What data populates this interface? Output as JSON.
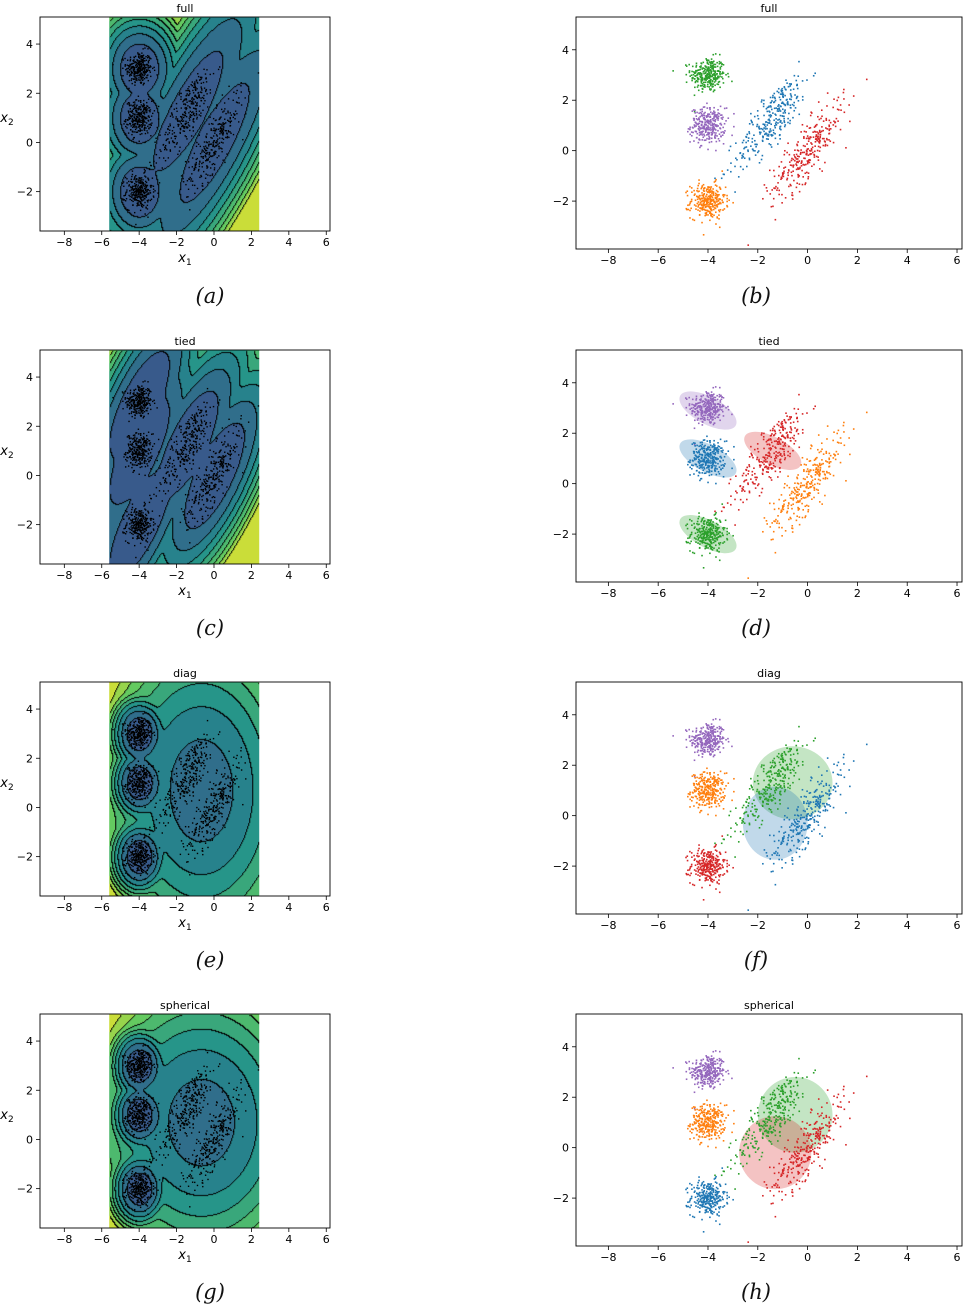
{
  "colors": {
    "tab_blue": "#1f77b4",
    "tab_orange": "#ff7f0e",
    "tab_green": "#2ca02c",
    "tab_red": "#d62728",
    "tab_purple": "#9467bd",
    "viridis_low": "#3b528b",
    "viridis_mid": "#21918c",
    "viridis_high": "#fde725",
    "contour_line": "#000000",
    "data_point": "#000000"
  },
  "clusters": [
    {
      "id": "c1",
      "mean": [
        -4.0,
        3.0
      ],
      "cov": [
        [
          0.12,
          0
        ],
        [
          0,
          0.12
        ]
      ]
    },
    {
      "id": "c2",
      "mean": [
        -4.0,
        1.0
      ],
      "cov": [
        [
          0.12,
          0
        ],
        [
          0,
          0.12
        ]
      ]
    },
    {
      "id": "c3",
      "mean": [
        -4.0,
        -2.0
      ],
      "cov": [
        [
          0.12,
          0
        ],
        [
          0,
          0.12
        ]
      ]
    },
    {
      "id": "c4",
      "mean": [
        -1.4,
        1.3
      ],
      "cov": [
        [
          0.55,
          0.6
        ],
        [
          0.6,
          0.95
        ]
      ]
    },
    {
      "id": "c5",
      "mean": [
        0.0,
        0.0
      ],
      "cov": [
        [
          0.55,
          0.6
        ],
        [
          0.6,
          0.95
        ]
      ]
    }
  ],
  "chart_data": [
    {
      "type": "heatmap",
      "title": "full",
      "xlabel": "x1",
      "ylabel": "x2",
      "xlim": [
        -9.3,
        6.2
      ],
      "ylim": [
        -3.6,
        5.1
      ],
      "xticks": [
        -8,
        -6,
        -4,
        -2,
        0,
        2,
        4,
        6
      ],
      "yticks": [
        -2,
        0,
        2,
        4
      ],
      "extent_x": [
        -5.6,
        2.4
      ],
      "extent_y": [
        -3.6,
        5.1
      ],
      "caption": "(a)",
      "components": [
        {
          "mean": [
            -4.0,
            3.0
          ],
          "cov": [
            [
              0.12,
              0
            ],
            [
              0,
              0.12
            ]
          ]
        },
        {
          "mean": [
            -4.0,
            1.0
          ],
          "cov": [
            [
              0.12,
              0
            ],
            [
              0,
              0.12
            ]
          ]
        },
        {
          "mean": [
            -4.0,
            -2.0
          ],
          "cov": [
            [
              0.12,
              0
            ],
            [
              0,
              0.12
            ]
          ]
        },
        {
          "mean": [
            -1.4,
            1.3
          ],
          "cov": [
            [
              0.55,
              0.6
            ],
            [
              0.6,
              0.95
            ]
          ]
        },
        {
          "mean": [
            0.0,
            0.0
          ],
          "cov": [
            [
              0.55,
              0.6
            ],
            [
              0.6,
              0.95
            ]
          ]
        }
      ]
    },
    {
      "type": "scatter",
      "title": "full",
      "xlim": [
        -9.3,
        6.2
      ],
      "ylim": [
        -3.9,
        5.3
      ],
      "xticks": [
        -8,
        -6,
        -4,
        -2,
        0,
        2,
        4,
        6
      ],
      "yticks": [
        -2,
        0,
        2,
        4
      ],
      "caption": "(b)",
      "assign": [
        "green",
        "purple",
        "orange",
        "blue",
        "red"
      ],
      "ellipses": []
    },
    {
      "type": "heatmap",
      "title": "tied",
      "xlabel": "x1",
      "ylabel": "x2",
      "xlim": [
        -9.3,
        6.2
      ],
      "ylim": [
        -3.6,
        5.1
      ],
      "xticks": [
        -8,
        -6,
        -4,
        -2,
        0,
        2,
        4,
        6
      ],
      "yticks": [
        -2,
        0,
        2,
        4
      ],
      "extent_x": [
        -5.6,
        2.4
      ],
      "extent_y": [
        -3.6,
        5.1
      ],
      "caption": "(c)",
      "components": [
        {
          "mean": [
            -4.0,
            2.9
          ],
          "cov": [
            [
              0.3,
              0.3
            ],
            [
              0.3,
              0.55
            ]
          ]
        },
        {
          "mean": [
            -4.0,
            1.0
          ],
          "cov": [
            [
              0.3,
              0.3
            ],
            [
              0.3,
              0.55
            ]
          ]
        },
        {
          "mean": [
            -4.0,
            -2.0
          ],
          "cov": [
            [
              0.3,
              0.3
            ],
            [
              0.3,
              0.55
            ]
          ]
        },
        {
          "mean": [
            -1.4,
            1.3
          ],
          "cov": [
            [
              0.3,
              0.3
            ],
            [
              0.3,
              0.55
            ]
          ]
        },
        {
          "mean": [
            0.0,
            0.0
          ],
          "cov": [
            [
              0.3,
              0.3
            ],
            [
              0.3,
              0.55
            ]
          ]
        }
      ]
    },
    {
      "type": "scatter",
      "title": "tied",
      "xlim": [
        -9.3,
        6.2
      ],
      "ylim": [
        -3.9,
        5.3
      ],
      "xticks": [
        -8,
        -6,
        -4,
        -2,
        0,
        2,
        4,
        6
      ],
      "yticks": [
        -2,
        0,
        2,
        4
      ],
      "caption": "(d)",
      "assign": [
        "purple",
        "blue",
        "green",
        "red",
        "orange"
      ],
      "ellipses": [
        {
          "color": "purple",
          "cx": -4.0,
          "cy": 2.9,
          "rx": 0.55,
          "ry": 1.25,
          "angle": 62
        },
        {
          "color": "blue",
          "cx": -4.0,
          "cy": 1.0,
          "rx": 0.55,
          "ry": 1.25,
          "angle": 62
        },
        {
          "color": "green",
          "cx": -4.0,
          "cy": -2.0,
          "rx": 0.55,
          "ry": 1.25,
          "angle": 62
        },
        {
          "color": "red",
          "cx": -1.4,
          "cy": 1.3,
          "rx": 0.55,
          "ry": 1.25,
          "angle": 62
        }
      ]
    },
    {
      "type": "heatmap",
      "title": "diag",
      "xlabel": "x1",
      "ylabel": "x2",
      "xlim": [
        -9.3,
        6.2
      ],
      "ylim": [
        -3.6,
        5.1
      ],
      "xticks": [
        -8,
        -6,
        -4,
        -2,
        0,
        2,
        4,
        6
      ],
      "yticks": [
        -2,
        0,
        2,
        4
      ],
      "extent_x": [
        -5.6,
        2.4
      ],
      "extent_y": [
        -3.6,
        5.1
      ],
      "caption": "(e)",
      "components": [
        {
          "mean": [
            -4.0,
            3.0
          ],
          "cov": [
            [
              0.12,
              0
            ],
            [
              0,
              0.12
            ]
          ]
        },
        {
          "mean": [
            -4.0,
            1.0
          ],
          "cov": [
            [
              0.12,
              0
            ],
            [
              0,
              0.12
            ]
          ]
        },
        {
          "mean": [
            -4.0,
            -2.0
          ],
          "cov": [
            [
              0.12,
              0
            ],
            [
              0,
              0.12
            ]
          ]
        },
        {
          "mean": [
            -0.7,
            0.7
          ],
          "cov": [
            [
              1.3,
              0
            ],
            [
              0,
              2.0
            ]
          ]
        }
      ]
    },
    {
      "type": "scatter",
      "title": "diag",
      "xlim": [
        -9.3,
        6.2
      ],
      "ylim": [
        -3.9,
        5.3
      ],
      "xticks": [
        -8,
        -6,
        -4,
        -2,
        0,
        2,
        4,
        6
      ],
      "yticks": [
        -2,
        0,
        2,
        4
      ],
      "caption": "(f)",
      "assign": [
        "purple",
        "orange",
        "red",
        "green",
        "blue"
      ],
      "ellipses": [
        {
          "color": "green",
          "cx": -0.6,
          "cy": 1.3,
          "rx": 1.6,
          "ry": 1.45,
          "angle": 0
        },
        {
          "color": "blue",
          "cx": -1.3,
          "cy": -0.3,
          "rx": 1.3,
          "ry": 1.45,
          "angle": 0
        }
      ]
    },
    {
      "type": "heatmap",
      "title": "spherical",
      "xlabel": "x1",
      "ylabel": "x2",
      "xlim": [
        -9.3,
        6.2
      ],
      "ylim": [
        -3.6,
        5.1
      ],
      "xticks": [
        -8,
        -6,
        -4,
        -2,
        0,
        2,
        4,
        6
      ],
      "yticks": [
        -2,
        0,
        2,
        4
      ],
      "extent_x": [
        -5.6,
        2.4
      ],
      "extent_y": [
        -3.6,
        5.1
      ],
      "caption": "(g)",
      "components": [
        {
          "mean": [
            -4.0,
            3.0
          ],
          "cov": [
            [
              0.12,
              0
            ],
            [
              0,
              0.12
            ]
          ]
        },
        {
          "mean": [
            -4.0,
            1.0
          ],
          "cov": [
            [
              0.12,
              0
            ],
            [
              0,
              0.12
            ]
          ]
        },
        {
          "mean": [
            -4.0,
            -2.0
          ],
          "cov": [
            [
              0.12,
              0
            ],
            [
              0,
              0.12
            ]
          ]
        },
        {
          "mean": [
            -0.7,
            0.7
          ],
          "cov": [
            [
              1.6,
              0
            ],
            [
              0,
              1.6
            ]
          ]
        }
      ]
    },
    {
      "type": "scatter",
      "title": "spherical",
      "xlim": [
        -9.3,
        6.2
      ],
      "ylim": [
        -3.9,
        5.3
      ],
      "xticks": [
        -8,
        -6,
        -4,
        -2,
        0,
        2,
        4,
        6
      ],
      "yticks": [
        -2,
        0,
        2,
        4
      ],
      "caption": "(h)",
      "assign": [
        "purple",
        "orange",
        "blue",
        "green",
        "red"
      ],
      "ellipses": [
        {
          "color": "green",
          "cx": -0.5,
          "cy": 1.3,
          "rx": 1.5,
          "ry": 1.5,
          "angle": 0
        },
        {
          "color": "red",
          "cx": -1.3,
          "cy": -0.2,
          "rx": 1.45,
          "ry": 1.45,
          "angle": 0
        }
      ]
    }
  ]
}
